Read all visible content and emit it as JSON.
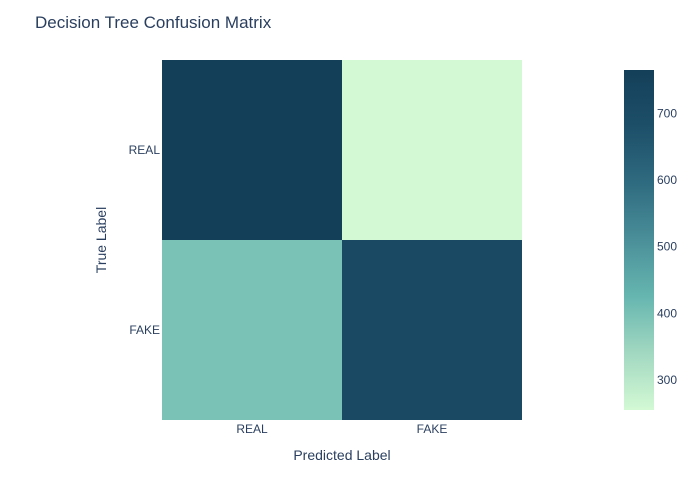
{
  "chart_data": {
    "type": "heatmap",
    "title": "Decision Tree Confusion Matrix",
    "xlabel": "Predicted Label",
    "ylabel": "True Label",
    "x_categories": [
      "REAL",
      "FAKE"
    ],
    "y_categories": [
      "REAL",
      "FAKE"
    ],
    "values": [
      [
        765,
        255
      ],
      [
        395,
        710
      ]
    ],
    "colorscale": {
      "min": 255,
      "max": 765,
      "stops": [
        "#d3f9d4",
        "#a2d8c1",
        "#66b6b0",
        "#4a8f99",
        "#2f6b80",
        "#1d4f69",
        "#143f59"
      ],
      "ticks": [
        300,
        400,
        500,
        600,
        700
      ]
    }
  }
}
